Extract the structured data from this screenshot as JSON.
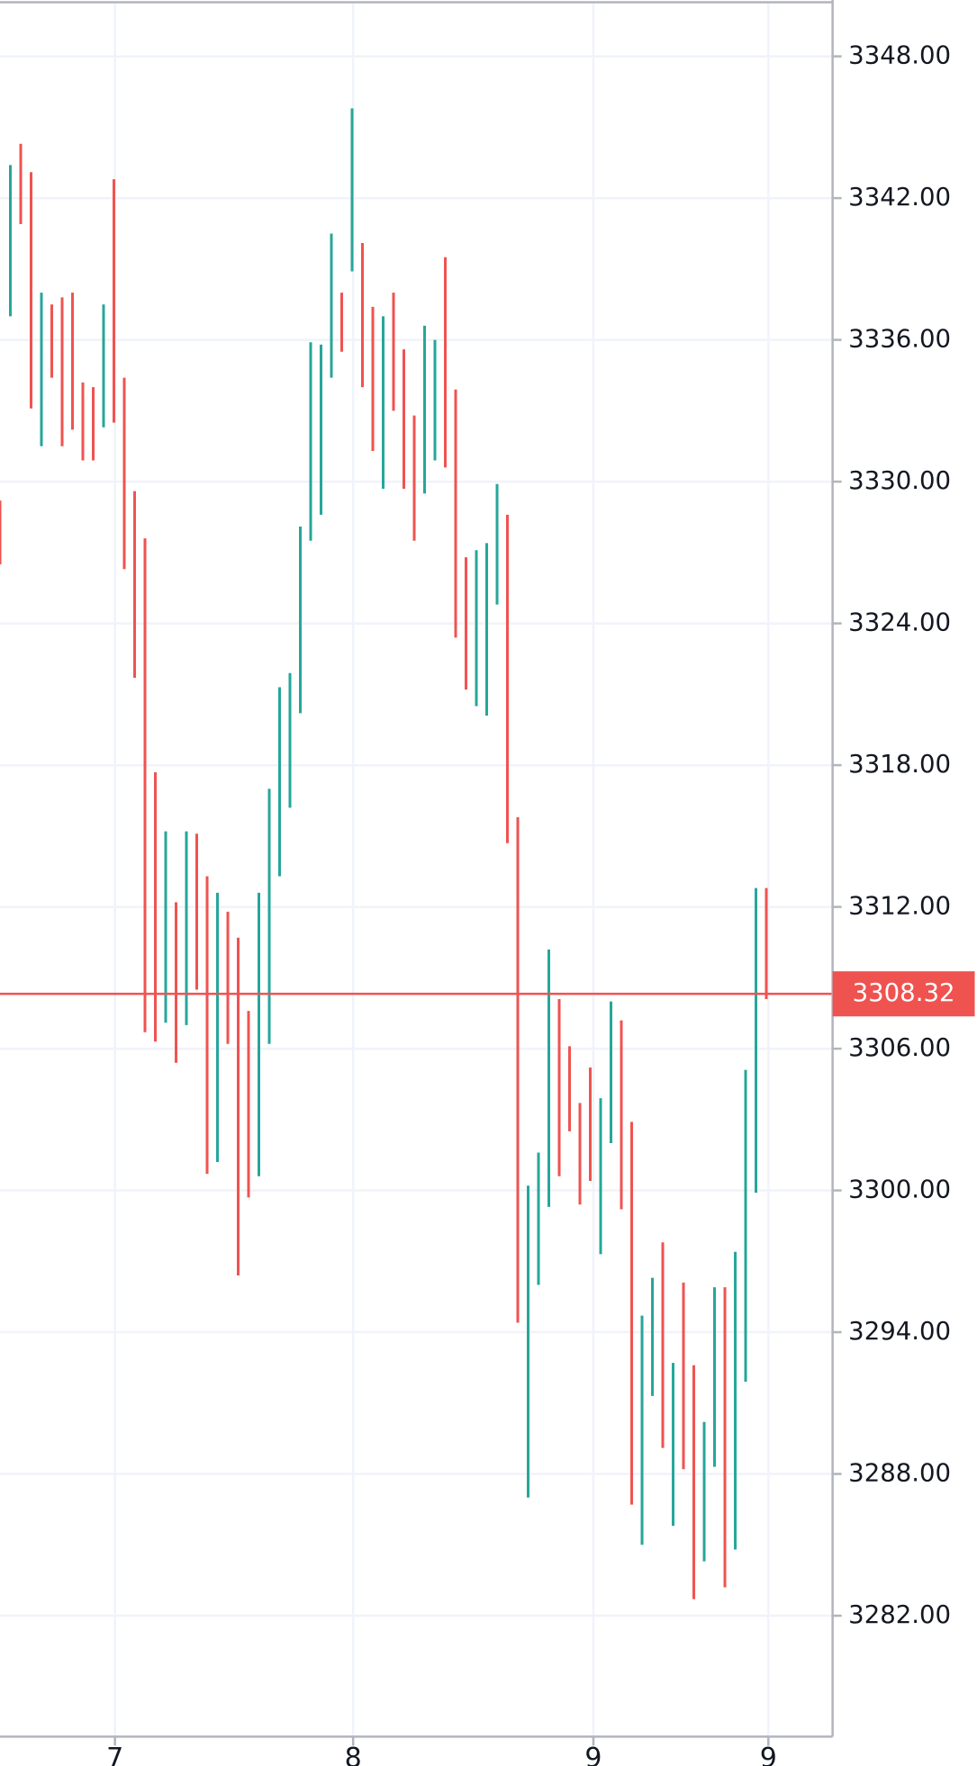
{
  "chart_data": {
    "type": "range-bar",
    "x": [
      0,
      1,
      2,
      3,
      4,
      5,
      6,
      7,
      8,
      9,
      10,
      11,
      12,
      13,
      14,
      15,
      16,
      17,
      18,
      19,
      20,
      21,
      22,
      23,
      24,
      25,
      26,
      27,
      28,
      29,
      30,
      31,
      32,
      33,
      34,
      35,
      36,
      37,
      38,
      39,
      40,
      41,
      42,
      43,
      44,
      45,
      46,
      47,
      48,
      49,
      50,
      51,
      52,
      53,
      54,
      55,
      56,
      57,
      58,
      59,
      60,
      61,
      62,
      63,
      64,
      65,
      66,
      67,
      68,
      69,
      70,
      71,
      72,
      73,
      74
    ],
    "high": [
      3329.2,
      3343.4,
      3344.3,
      3343.1,
      3338.0,
      3337.5,
      3337.8,
      3338.0,
      3334.2,
      3334.0,
      3337.5,
      3342.8,
      3334.4,
      3329.6,
      3327.6,
      3317.7,
      3315.2,
      3312.2,
      3315.2,
      3315.1,
      3313.3,
      3312.6,
      3311.8,
      3310.7,
      3307.6,
      3312.6,
      3317.0,
      3321.3,
      3321.9,
      3328.1,
      3335.9,
      3335.8,
      3340.5,
      3338.0,
      3345.8,
      3340.1,
      3337.4,
      3337.0,
      3338.0,
      3335.6,
      3332.8,
      3336.6,
      3336.0,
      3339.5,
      3333.9,
      3326.8,
      3327.1,
      3327.4,
      3329.9,
      3328.6,
      3315.8,
      3300.2,
      3301.6,
      3310.2,
      3308.1,
      3306.1,
      3303.7,
      3305.2,
      3303.9,
      3308.0,
      3307.2,
      3302.9,
      3294.7,
      3296.3,
      3297.8,
      3292.7,
      3296.1,
      3292.6,
      3290.2,
      3295.9,
      3295.9,
      3297.4,
      3305.1,
      3312.8,
      3312.8
    ],
    "low": [
      3326.5,
      3337.0,
      3340.9,
      3333.1,
      3331.5,
      3334.4,
      3331.5,
      3332.2,
      3330.9,
      3330.9,
      3332.3,
      3332.5,
      3326.3,
      3321.7,
      3306.7,
      3306.3,
      3307.1,
      3305.4,
      3307.0,
      3308.5,
      3300.7,
      3301.2,
      3306.2,
      3296.4,
      3299.7,
      3300.6,
      3306.2,
      3313.3,
      3316.2,
      3320.2,
      3327.5,
      3328.6,
      3334.4,
      3335.5,
      3338.9,
      3334.0,
      3331.3,
      3329.7,
      3333.0,
      3329.7,
      3327.5,
      3329.5,
      3330.9,
      3330.6,
      3323.4,
      3321.2,
      3320.5,
      3320.1,
      3324.8,
      3314.7,
      3294.4,
      3287.0,
      3296.0,
      3299.3,
      3300.6,
      3302.5,
      3299.4,
      3300.4,
      3297.3,
      3302.0,
      3299.2,
      3286.7,
      3285.0,
      3291.3,
      3289.1,
      3285.8,
      3288.2,
      3282.7,
      3284.3,
      3288.3,
      3283.2,
      3284.8,
      3291.9,
      3299.9,
      3308.1
    ],
    "colors": [
      "#ef5350",
      "#26a69a",
      "#ef5350",
      "#ef5350",
      "#26a69a",
      "#ef5350",
      "#ef5350",
      "#ef5350",
      "#ef5350",
      "#ef5350",
      "#26a69a",
      "#ef5350",
      "#ef5350",
      "#ef5350",
      "#ef5350",
      "#ef5350",
      "#26a69a",
      "#ef5350",
      "#26a69a",
      "#ef5350",
      "#ef5350",
      "#26a69a",
      "#ef5350",
      "#ef5350",
      "#ef5350",
      "#26a69a",
      "#26a69a",
      "#26a69a",
      "#26a69a",
      "#26a69a",
      "#26a69a",
      "#26a69a",
      "#26a69a",
      "#ef5350",
      "#26a69a",
      "#ef5350",
      "#ef5350",
      "#26a69a",
      "#ef5350",
      "#ef5350",
      "#ef5350",
      "#26a69a",
      "#26a69a",
      "#ef5350",
      "#ef5350",
      "#ef5350",
      "#26a69a",
      "#26a69a",
      "#26a69a",
      "#ef5350",
      "#ef5350",
      "#26a69a",
      "#26a69a",
      "#26a69a",
      "#ef5350",
      "#ef5350",
      "#ef5350",
      "#ef5350",
      "#26a69a",
      "#26a69a",
      "#ef5350",
      "#ef5350",
      "#26a69a",
      "#26a69a",
      "#ef5350",
      "#26a69a",
      "#ef5350",
      "#ef5350",
      "#26a69a",
      "#26a69a",
      "#ef5350",
      "#26a69a",
      "#26a69a",
      "#26a69a",
      "#ef5350"
    ],
    "last_price": 3308.32,
    "last_price_color": "#ef5350",
    "xlim": [
      0,
      80.4
    ],
    "xticks": [
      {
        "value": 11.1,
        "label": "7"
      },
      {
        "value": 34.1,
        "label": "8"
      },
      {
        "value": 57.3,
        "label": "9"
      },
      {
        "value": 74.2,
        "label": "9"
      }
    ],
    "ylim": [
      3276.88,
      3350.29
    ],
    "yticks": [
      {
        "value": 3282,
        "label": "3282.00"
      },
      {
        "value": 3288,
        "label": "3288.00"
      },
      {
        "value": 3294,
        "label": "3294.00"
      },
      {
        "value": 3300,
        "label": "3300.00"
      },
      {
        "value": 3306,
        "label": "3306.00"
      },
      {
        "value": 3312,
        "label": "3312.00"
      },
      {
        "value": 3318,
        "label": "3318.00"
      },
      {
        "value": 3324,
        "label": "3324.00"
      },
      {
        "value": 3330,
        "label": "3330.00"
      },
      {
        "value": 3336,
        "label": "3336.00"
      },
      {
        "value": 3342,
        "label": "3342.00"
      },
      {
        "value": 3348,
        "label": "3348.00"
      }
    ],
    "grid": true
  }
}
